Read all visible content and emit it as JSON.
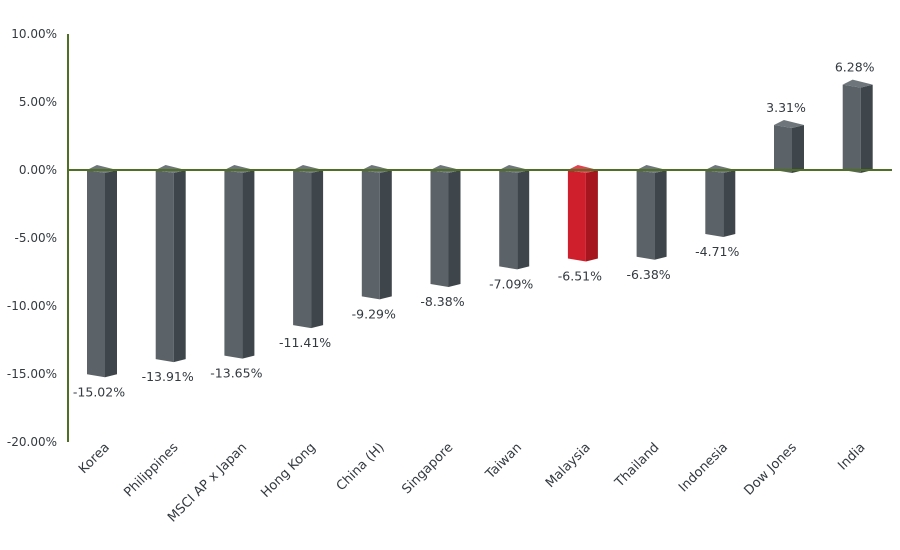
{
  "chart_data": {
    "type": "bar",
    "title": "",
    "xlabel": "",
    "ylabel": "",
    "ylim": [
      -20,
      10
    ],
    "yticks": [
      {
        "value": 10,
        "label": "10.00%"
      },
      {
        "value": 5,
        "label": "5.00%"
      },
      {
        "value": 0,
        "label": "0.00%"
      },
      {
        "value": -5,
        "label": "-5.00%"
      },
      {
        "value": -10,
        "label": "-10.00%"
      },
      {
        "value": -15,
        "label": "-15.00%"
      },
      {
        "value": -20,
        "label": "-20.00%"
      }
    ],
    "categories": [
      "Korea",
      "Philippines",
      "MSCI AP x Japan",
      "Hong Kong",
      "China (H)",
      "Singapore",
      "Taiwan",
      "Malaysia",
      "Thailand",
      "Indonesia",
      "Dow Jones",
      "India"
    ],
    "values": [
      -15.02,
      -13.91,
      -13.65,
      -11.41,
      -9.29,
      -8.38,
      -7.09,
      -6.51,
      -6.38,
      -4.71,
      3.31,
      6.28
    ],
    "data_labels": [
      "-15.02%",
      "-13.91%",
      "-13.65%",
      "-11.41%",
      "-9.29%",
      "-8.38%",
      "-7.09%",
      "-6.51%",
      "-6.38%",
      "-4.71%",
      "3.31%",
      "6.28%"
    ],
    "highlight_category": "Malaysia",
    "grid": false,
    "legend": "none",
    "colors": {
      "bar_front": "#5b6368",
      "bar_side": "#3f464b",
      "bar_top": "#6e767b",
      "highlight_front": "#d01f2c",
      "highlight_side": "#a5161f",
      "highlight_top": "#e0434d",
      "axis": "#4f6f25",
      "text": "#333a40"
    }
  }
}
